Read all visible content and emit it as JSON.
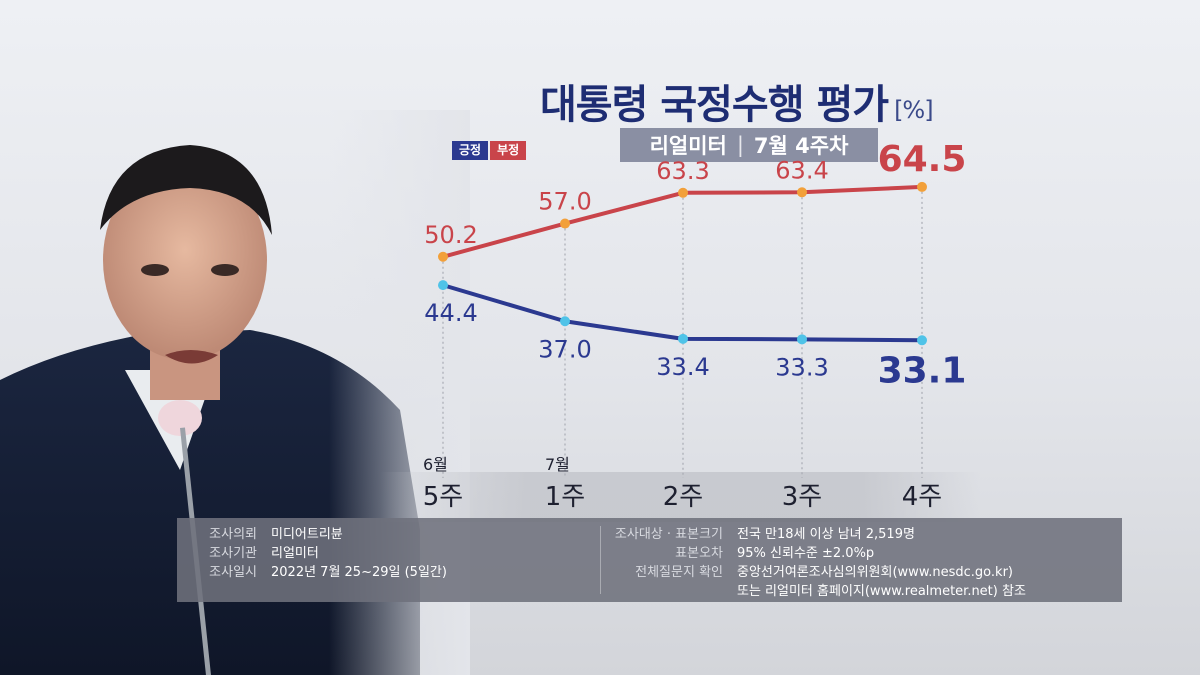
{
  "title": "대통령 국정수행 평가",
  "unit": "[%]",
  "subtitle": {
    "source": "리얼미터",
    "period": "7월 4주차"
  },
  "legend": [
    {
      "label": "긍정",
      "color": "#2b3990"
    },
    {
      "label": "부정",
      "color": "#c9444a"
    }
  ],
  "chart_data": {
    "type": "line",
    "categories": [
      "5주",
      "1주",
      "2주",
      "3주",
      "4주"
    ],
    "month_labels": [
      "6월",
      "7월",
      "",
      "",
      ""
    ],
    "series": [
      {
        "name": "긍정",
        "color": "#2b3990",
        "values": [
          44.4,
          37.0,
          33.4,
          33.3,
          33.1
        ],
        "labels": [
          "44.4",
          "37.0",
          "33.4",
          "33.3",
          "33.1"
        ]
      },
      {
        "name": "부정",
        "color": "#c9444a",
        "values": [
          50.2,
          57.0,
          63.3,
          63.4,
          64.5
        ],
        "labels": [
          "50.2",
          "57.0",
          "63.3",
          "63.4",
          "64.5"
        ]
      }
    ],
    "ylim": [
      20,
      75
    ],
    "grid": false,
    "legend_position": "top-left"
  },
  "info": {
    "left": [
      {
        "key": "조사의뢰",
        "value": "미디어트리뷴"
      },
      {
        "key": "조사기관",
        "value": "리얼미터"
      },
      {
        "key": "조사일시",
        "value": "2022년 7월 25~29일 (5일간)"
      }
    ],
    "right": [
      {
        "key": "조사대상 · 표본크기",
        "value": "전국 만18세 이상 남녀 2,519명"
      },
      {
        "key": "표본오차",
        "value": "95% 신뢰수준 ±2.0%p"
      },
      {
        "key": "전체질문지 확인",
        "value": "중앙선거여론조사심의위원회(www.nesdc.go.kr)"
      },
      {
        "key": "",
        "value": "또는 리얼미터 홈페이지(www.realmeter.net) 참조"
      }
    ]
  }
}
